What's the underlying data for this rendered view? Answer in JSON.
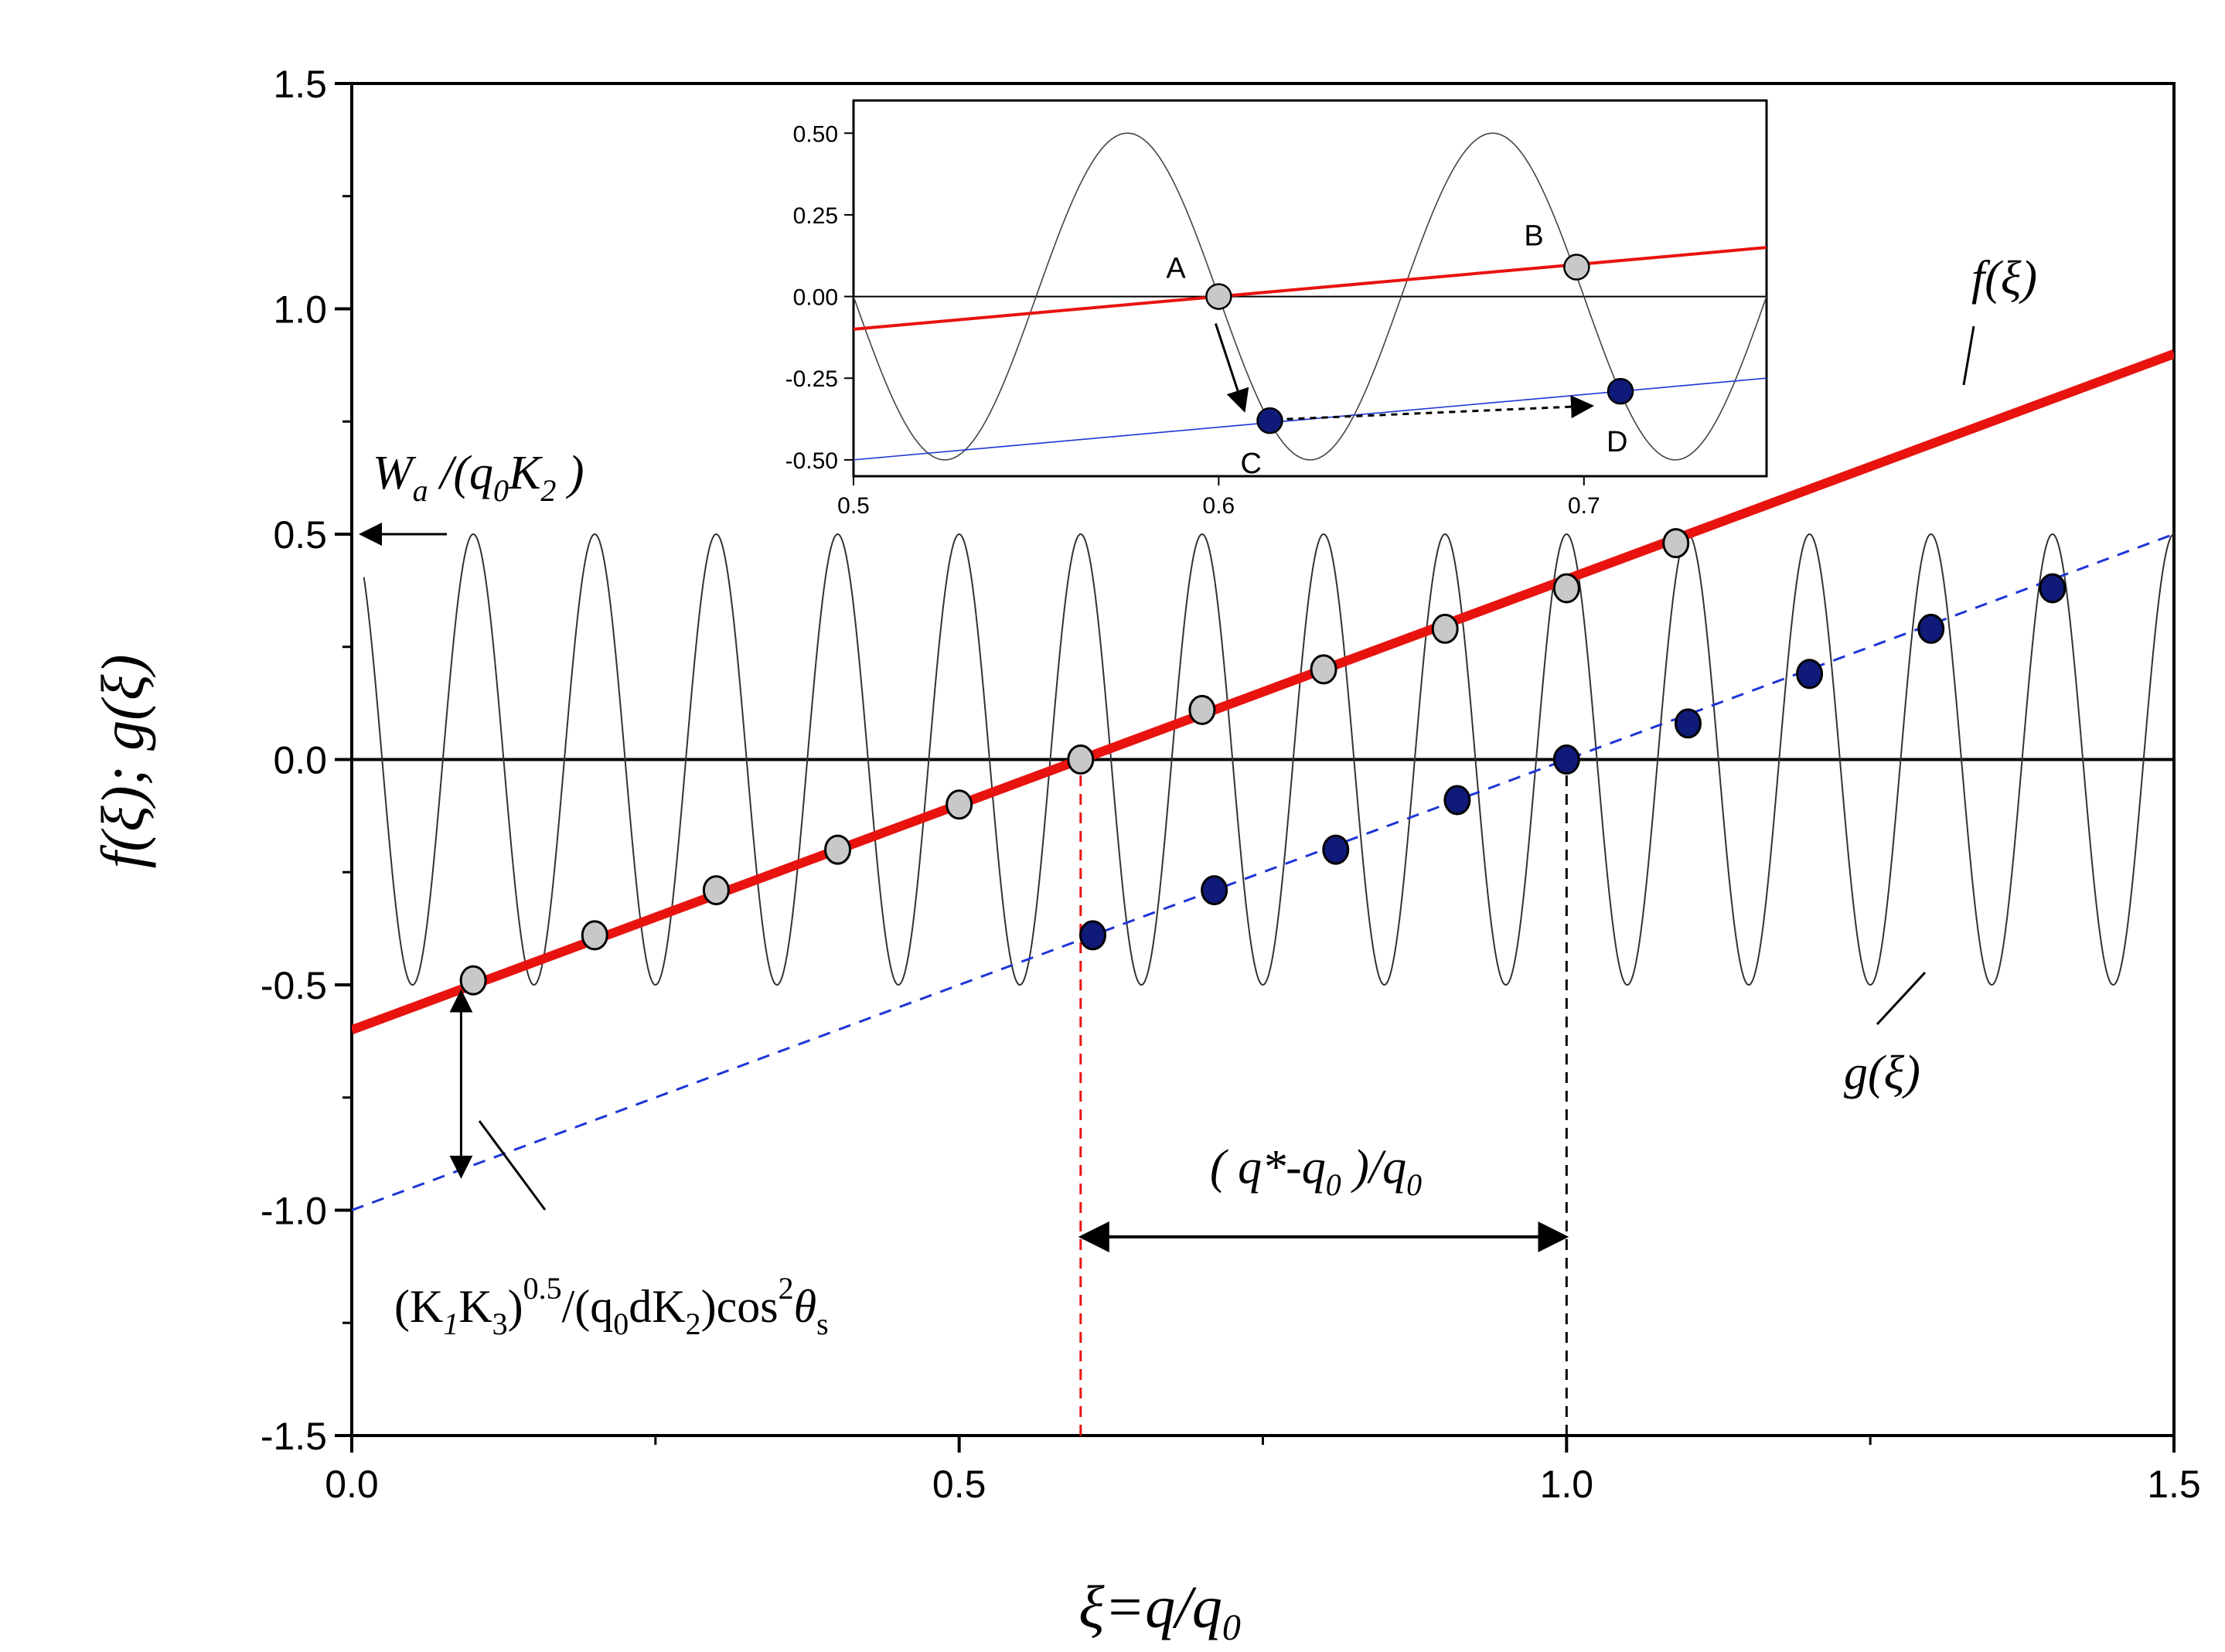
{
  "chart_data": [
    {
      "type": "line",
      "title": "",
      "xlabel": "ξ=q/q0",
      "ylabel": "f(ξ); g(ξ)",
      "xlim": [
        0.0,
        1.5
      ],
      "ylim": [
        -1.5,
        1.5
      ],
      "x_ticks": [
        "0.0",
        "0.5",
        "1.0",
        "1.5"
      ],
      "y_ticks": [
        "-1.5",
        "-1.0",
        "-0.5",
        "0.0",
        "0.5",
        "1.0",
        "1.5"
      ],
      "grid": false,
      "series": [
        {
          "name": "f(ξ)",
          "style": "solid",
          "color": "#e8130f",
          "x": [
            0.0,
            1.5
          ],
          "y": [
            -0.6,
            0.9
          ]
        },
        {
          "name": "g(ξ)",
          "style": "dashed",
          "color": "#1d35d6",
          "x": [
            0.0,
            1.5
          ],
          "y": [
            -1.0,
            0.5
          ]
        },
        {
          "name": "",
          "style": "thin-oscillation",
          "color": "#333333",
          "amplitude": 0.5,
          "period": 0.1,
          "x_range": [
            0.01,
            1.5
          ]
        }
      ],
      "markers_grey": {
        "x": [
          0.1,
          0.2,
          0.3,
          0.4,
          0.5,
          0.6,
          0.7,
          0.8,
          0.9,
          1.0,
          1.09
        ],
        "y": [
          -0.49,
          -0.39,
          -0.29,
          -0.2,
          -0.1,
          0.0,
          0.11,
          0.2,
          0.29,
          0.38,
          0.48
        ]
      },
      "markers_blue": {
        "x": [
          0.61,
          0.71,
          0.81,
          0.91,
          1.0,
          1.1,
          1.2,
          1.3,
          1.4
        ],
        "y": [
          -0.39,
          -0.29,
          -0.2,
          -0.09,
          0.0,
          0.08,
          0.19,
          0.29,
          0.38
        ]
      },
      "vertical_lines": [
        {
          "x": 0.6,
          "color": "#e8130f",
          "y_from": -1.5,
          "y_to": 0.0
        },
        {
          "x": 1.0,
          "color": "#000000",
          "y_from": -1.5,
          "y_to": 0.0
        }
      ],
      "annotations": {
        "wa": "W_a /(q_0 K_2 )",
        "f_label": "f(ξ)",
        "g_label": "g(ξ)",
        "k_label": "(K_1 K_3 )^0.5/(q_0 dK_2 )cos^2 θ_s",
        "q_label": "( q*-q_0 )/q_0"
      },
      "inset": {
        "xlim": [
          0.5,
          0.75
        ],
        "ylim": [
          -0.55,
          0.6
        ],
        "x_ticks": [
          "0.5",
          "0.6",
          "0.7"
        ],
        "y_ticks": [
          "-0.50",
          "-0.25",
          "0.00",
          "0.25",
          "0.50"
        ],
        "points": {
          "A": {
            "x": 0.6,
            "y": 0.0
          },
          "B": {
            "x": 0.698,
            "y": 0.09
          },
          "C": {
            "x": 0.614,
            "y": -0.38
          },
          "D": {
            "x": 0.71,
            "y": -0.29
          }
        }
      }
    }
  ],
  "colors": {
    "red": "#e8130f",
    "blue": "#1d35d6",
    "navy_marker": "#101a78",
    "grey_marker": "#c8c8c8"
  }
}
